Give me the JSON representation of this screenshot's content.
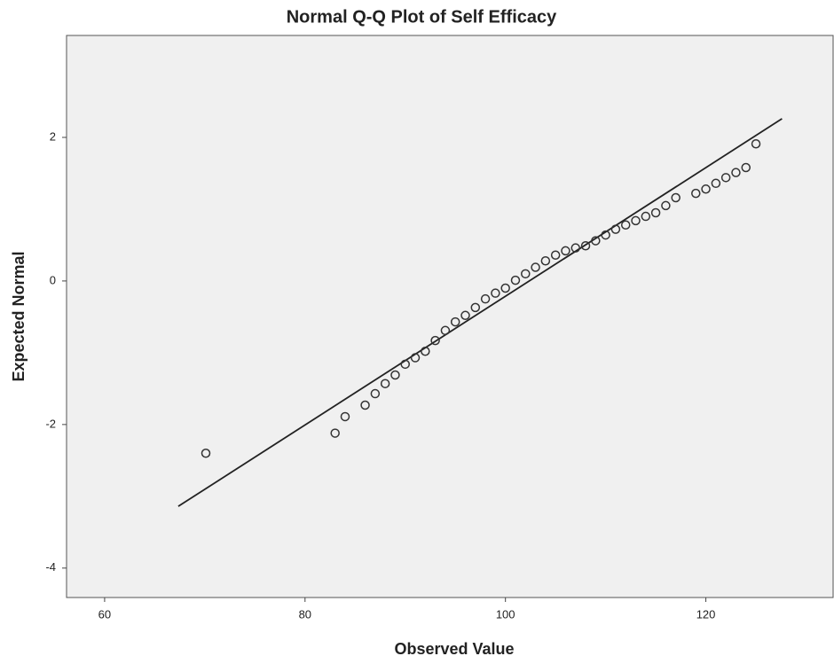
{
  "chart_data": {
    "type": "scatter",
    "title": "Normal Q-Q Plot of Self Efficacy",
    "x_label": "Observed Value",
    "y_label": "Expected Normal",
    "xlim": [
      56.2,
      132.7
    ],
    "ylim": [
      -4.41,
      3.42
    ],
    "xticks": [
      60,
      80,
      100,
      120
    ],
    "yticks": [
      -4,
      -2,
      0,
      2
    ],
    "background": "#f0f0f0",
    "marker_color": "#333333",
    "line_color": "#222222",
    "x": [
      70.1,
      83,
      84,
      86,
      87,
      88,
      89,
      90,
      91,
      92,
      93,
      94,
      95,
      96,
      97,
      98,
      99,
      100,
      101,
      102,
      103,
      104,
      105,
      106,
      107,
      108,
      109,
      110,
      111,
      112,
      113,
      114,
      115,
      116,
      117,
      119,
      120,
      121,
      122,
      123,
      124,
      125
    ],
    "values": [
      -2.4,
      -2.12,
      -1.89,
      -1.73,
      -1.57,
      -1.43,
      -1.31,
      -1.16,
      -1.07,
      -0.98,
      -0.83,
      -0.69,
      -0.57,
      -0.48,
      -0.37,
      -0.25,
      -0.17,
      -0.1,
      0.01,
      0.1,
      0.19,
      0.28,
      0.36,
      0.42,
      0.46,
      0.49,
      0.56,
      0.64,
      0.72,
      0.78,
      0.84,
      0.9,
      0.95,
      1.05,
      1.16,
      1.22,
      1.28,
      1.36,
      1.44,
      1.51,
      1.58,
      1.91
    ],
    "reference_line": {
      "x": [
        67.35,
        127.6
      ],
      "values": [
        -3.14,
        2.26
      ]
    }
  }
}
